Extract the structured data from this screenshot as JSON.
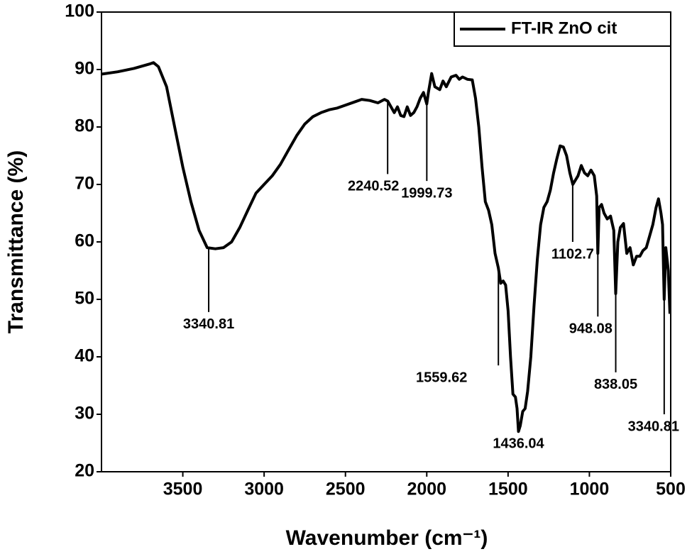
{
  "chart_data": {
    "type": "line",
    "x_label": "Wavenumber (cm⁻¹)",
    "y_label": "Transmittance (%)",
    "xlim": [
      4000,
      500
    ],
    "ylim": [
      20,
      100
    ],
    "xticks": [
      3500,
      3000,
      2500,
      2000,
      1500,
      1000,
      500
    ],
    "yticks": [
      20,
      30,
      40,
      50,
      60,
      70,
      80,
      90,
      100
    ],
    "grid": false,
    "legend": "upper right",
    "x": [
      4000,
      3900,
      3800,
      3700,
      3680,
      3650,
      3600,
      3550,
      3500,
      3450,
      3400,
      3350,
      3300,
      3250,
      3200,
      3150,
      3100,
      3050,
      3000,
      2950,
      2900,
      2850,
      2800,
      2750,
      2700,
      2650,
      2600,
      2550,
      2500,
      2450,
      2400,
      2350,
      2300,
      2260,
      2240,
      2220,
      2200,
      2180,
      2160,
      2140,
      2120,
      2100,
      2080,
      2060,
      2040,
      2020,
      2000,
      1990,
      1970,
      1950,
      1920,
      1900,
      1880,
      1850,
      1820,
      1800,
      1780,
      1750,
      1720,
      1700,
      1680,
      1660,
      1640,
      1620,
      1600,
      1580,
      1560,
      1545,
      1530,
      1515,
      1500,
      1485,
      1470,
      1455,
      1445,
      1436,
      1425,
      1410,
      1395,
      1380,
      1360,
      1340,
      1320,
      1300,
      1280,
      1260,
      1240,
      1220,
      1200,
      1180,
      1160,
      1140,
      1120,
      1102,
      1085,
      1070,
      1050,
      1030,
      1010,
      990,
      970,
      955,
      948,
      940,
      925,
      910,
      890,
      870,
      850,
      838,
      825,
      810,
      790,
      770,
      750,
      730,
      710,
      690,
      670,
      650,
      630,
      610,
      590,
      575,
      560,
      550,
      540,
      530,
      515,
      505
    ],
    "series": [
      {
        "name": "FT-IR ZnO cit",
        "color": "#000000",
        "values": [
          89.2,
          89.6,
          90.2,
          91.0,
          91.2,
          90.5,
          87,
          80,
          73,
          67,
          62,
          59,
          58.8,
          59,
          60,
          62.5,
          65.5,
          68.5,
          70,
          71.5,
          73.5,
          76,
          78.5,
          80.5,
          81.8,
          82.5,
          83,
          83.3,
          83.8,
          84.3,
          84.8,
          84.6,
          84.2,
          84.8,
          84.5,
          83.5,
          82.5,
          83.5,
          82,
          81.8,
          83.5,
          82,
          82.5,
          83.5,
          85,
          86,
          84,
          86,
          89.3,
          87,
          86.5,
          88,
          87,
          88.7,
          89,
          88.3,
          88.7,
          88.3,
          88.2,
          85,
          80,
          73,
          67,
          65.5,
          63,
          58,
          55.5,
          52.8,
          53.2,
          52.5,
          48,
          40,
          33.5,
          33,
          31,
          27,
          28,
          30.5,
          31,
          34,
          40,
          49,
          57,
          63,
          66,
          67,
          69,
          72,
          74.5,
          76.7,
          76.5,
          75,
          72,
          70,
          70.8,
          71.5,
          73.3,
          72,
          71.5,
          72.5,
          71.5,
          68,
          58,
          66,
          66.5,
          65,
          64,
          64.5,
          62,
          51,
          60,
          62.5,
          63.2,
          58,
          59,
          56,
          57.5,
          57.5,
          58.5,
          59,
          61,
          63,
          66,
          67.5,
          65,
          63,
          50,
          59,
          55,
          47.5
        ]
      }
    ],
    "annotations": [
      {
        "text": "3340.81",
        "x": 3340.81,
        "y": 47.8
      },
      {
        "text": "2240.52",
        "x": 2240.52,
        "y": 71.8
      },
      {
        "text": "1999.73",
        "x": 1999.73,
        "y": 70.6
      },
      {
        "text": "1559.62",
        "x": 1559.62,
        "y": 38.5
      },
      {
        "text": "1436.04",
        "x": 1436.04,
        "y": 27
      },
      {
        "text": "1102.7",
        "x": 1102.7,
        "y": 60
      },
      {
        "text": "948.08",
        "x": 948.08,
        "y": 47
      },
      {
        "text": "838.05",
        "x": 838.05,
        "y": 37.3
      },
      {
        "text": "3340.81",
        "x": 540,
        "y": 30
      }
    ]
  }
}
